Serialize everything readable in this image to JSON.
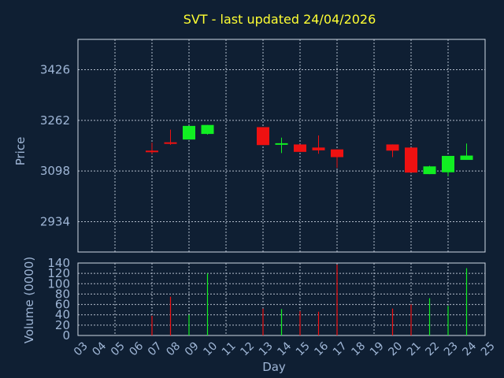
{
  "title": "SVT - last updated 24/04/2026",
  "colors": {
    "background": "#0f1f33",
    "title": "#ffff33",
    "up": "#11ee22",
    "down": "#ee1111",
    "axis_text": "#9fb6d6",
    "grid": "#cfd8e6"
  },
  "chart_data": [
    {
      "type": "candlestick",
      "ylabel": "Price",
      "xlabel": "",
      "ylim": [
        2836,
        3524
      ],
      "yticks": [
        2934,
        3098,
        3262,
        3426
      ],
      "grid": true,
      "candles": [
        {
          "day": "07",
          "open": 3164,
          "close": 3164,
          "high": 3190,
          "low": 3153
        },
        {
          "day": "08",
          "open": 3191,
          "close": 3191,
          "high": 3232,
          "low": 3183
        },
        {
          "day": "09",
          "open": 3200,
          "close": 3244,
          "high": 3244,
          "low": 3200
        },
        {
          "day": "10",
          "open": 3218,
          "close": 3247,
          "high": 3247,
          "low": 3216
        },
        {
          "day": "13",
          "open": 3240,
          "close": 3182,
          "high": 3240,
          "low": 3182
        },
        {
          "day": "14",
          "open": 3187,
          "close": 3188,
          "high": 3206,
          "low": 3156
        },
        {
          "day": "15",
          "open": 3184,
          "close": 3160,
          "high": 3184,
          "low": 3160
        },
        {
          "day": "16",
          "open": 3174,
          "close": 3165,
          "high": 3213,
          "low": 3154
        },
        {
          "day": "17",
          "open": 3168,
          "close": 3143,
          "high": 3168,
          "low": 3108
        },
        {
          "day": "20",
          "open": 3184,
          "close": 3164,
          "high": 3184,
          "low": 3143
        },
        {
          "day": "21",
          "open": 3174,
          "close": 3093,
          "high": 3174,
          "low": 3093
        },
        {
          "day": "22",
          "open": 3088,
          "close": 3113,
          "high": 3115,
          "low": 3088
        },
        {
          "day": "23",
          "open": 3094,
          "close": 3147,
          "high": 3147,
          "low": 3081
        },
        {
          "day": "24",
          "open": 3134,
          "close": 3148,
          "high": 3187,
          "low": 3134
        }
      ]
    },
    {
      "type": "bar",
      "ylabel": "Volume (0000)",
      "xlabel": "Day",
      "ylim": [
        0,
        140
      ],
      "yticks": [
        0,
        20,
        40,
        60,
        80,
        100,
        120,
        140
      ],
      "grid": true,
      "categories": [
        "03",
        "04",
        "05",
        "06",
        "07",
        "08",
        "09",
        "10",
        "11",
        "12",
        "13",
        "14",
        "15",
        "16",
        "17",
        "18",
        "19",
        "20",
        "21",
        "22",
        "23",
        "24",
        "25"
      ],
      "volumes": [
        {
          "day": "07",
          "value": 38,
          "direction": "down"
        },
        {
          "day": "08",
          "value": 75,
          "direction": "down"
        },
        {
          "day": "09",
          "value": 40,
          "direction": "up"
        },
        {
          "day": "10",
          "value": 120,
          "direction": "up"
        },
        {
          "day": "13",
          "value": 52,
          "direction": "down"
        },
        {
          "day": "14",
          "value": 51,
          "direction": "up"
        },
        {
          "day": "15",
          "value": 47,
          "direction": "down"
        },
        {
          "day": "16",
          "value": 46,
          "direction": "down"
        },
        {
          "day": "17",
          "value": 137,
          "direction": "down"
        },
        {
          "day": "20",
          "value": 52,
          "direction": "down"
        },
        {
          "day": "21",
          "value": 60,
          "direction": "down"
        },
        {
          "day": "22",
          "value": 72,
          "direction": "up"
        },
        {
          "day": "23",
          "value": 57,
          "direction": "up"
        },
        {
          "day": "24",
          "value": 130,
          "direction": "up"
        }
      ]
    }
  ]
}
